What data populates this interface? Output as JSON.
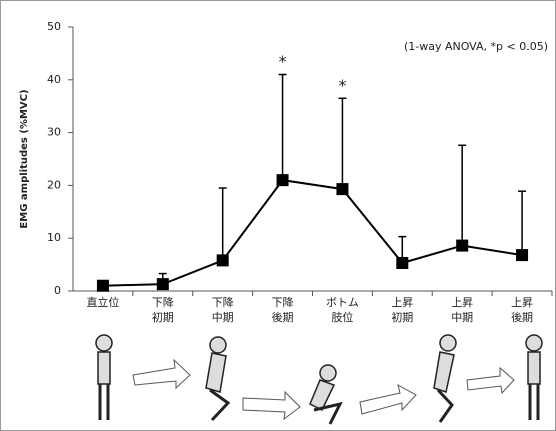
{
  "chart_data": {
    "type": "line",
    "y_label": "EMG amplitudes (%MVC)",
    "note": "(1-way ANOVA, *p < 0.05)",
    "categories": [
      [
        "直立位"
      ],
      [
        "下降",
        "初期"
      ],
      [
        "下降",
        "中期"
      ],
      [
        "下降",
        "後期"
      ],
      [
        "ボトム",
        "肢位"
      ],
      [
        "上昇",
        "初期"
      ],
      [
        "上昇",
        "中期"
      ],
      [
        "上昇",
        "後期"
      ]
    ],
    "values": [
      1.0,
      1.3,
      5.8,
      21.0,
      19.3,
      5.3,
      8.6,
      6.8
    ],
    "errors": [
      0.8,
      2.0,
      13.7,
      20.0,
      17.2,
      5.0,
      19.0,
      12.1
    ],
    "significance": [
      null,
      null,
      null,
      "*",
      "*",
      null,
      null,
      null
    ],
    "color": "#000000",
    "ylim": [
      0,
      50
    ],
    "yticks": [
      0,
      10,
      20,
      30,
      40,
      50
    ],
    "grid": false
  }
}
